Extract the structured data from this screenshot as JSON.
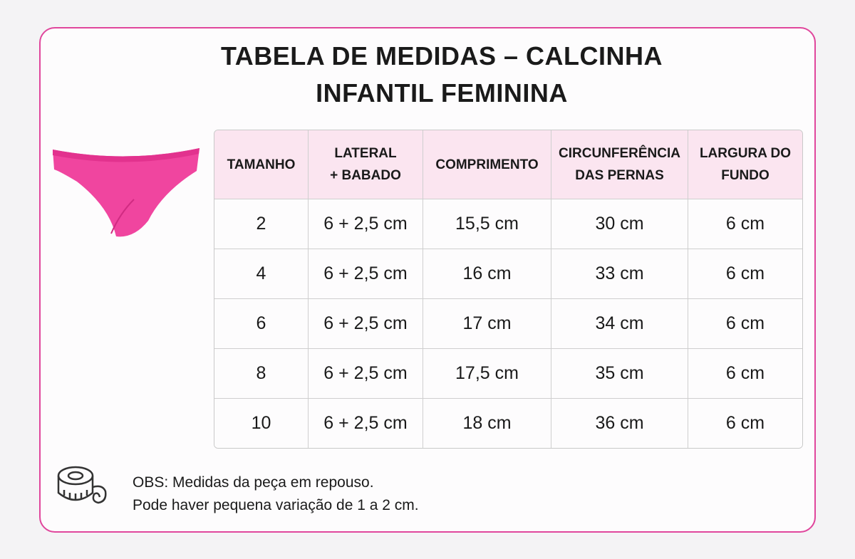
{
  "header": {
    "title": [
      "TABELA DE MEDIDAS – CALCINHA",
      "INFANTIL FEMININA"
    ]
  },
  "table": {
    "columns": [
      [
        "TAMANHO"
      ],
      [
        "LATERAL",
        "+ BABADO"
      ],
      [
        "COMPRIMENTO"
      ],
      [
        "CIRCUNFERÊNCIA",
        "DAS PERNAS"
      ],
      [
        "LARGURA DO",
        "FUNDO"
      ]
    ],
    "rows": [
      [
        "2",
        "6 + 2,5 cm",
        "15,5 cm",
        "30 cm",
        "6 cm"
      ],
      [
        "4",
        "6 + 2,5 cm",
        "16 cm",
        "33 cm",
        "6 cm"
      ],
      [
        "6",
        "6 + 2,5 cm",
        "17 cm",
        "34 cm",
        "6 cm"
      ],
      [
        "8",
        "6 + 2,5 cm",
        "17,5 cm",
        "35 cm",
        "6 cm"
      ],
      [
        "10",
        "6 + 2,5 cm",
        "18 cm",
        "36 cm",
        "6 cm"
      ]
    ]
  },
  "notes": [
    "OBS: Medidas da peça em repouso.",
    "Pode haver pequena variação de 1 a 2 cm."
  ]
}
